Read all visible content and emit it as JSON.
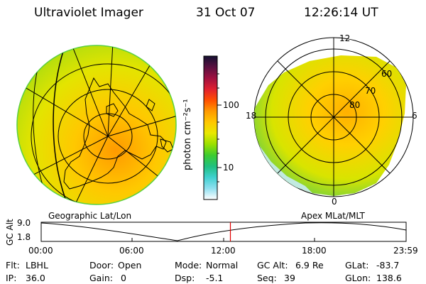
{
  "header": {
    "instrument": "Ultraviolet Imager",
    "date": "31 Oct 07",
    "time": "12:26:14 UT"
  },
  "left_panel": {
    "label": "Geographic Lat/Lon"
  },
  "right_panel": {
    "label": "Apex  MLat/MLT",
    "mlt_labels": {
      "top": "12",
      "left": "18",
      "right": "6",
      "bottom": "0"
    },
    "lat_labels": [
      "60",
      "70",
      "80"
    ]
  },
  "colorbar": {
    "unit_label": "photon cm⁻²s⁻¹",
    "tick_labels": [
      "100",
      "10"
    ],
    "colors": [
      "#141030",
      "#5a1040",
      "#a01040",
      "#e02030",
      "#ff5000",
      "#ff9a00",
      "#ffc800",
      "#e8e800",
      "#9ae000",
      "#3ccc30",
      "#20c080",
      "#40d0d0",
      "#90e0f0",
      "#ffffff"
    ]
  },
  "timeline": {
    "ylabel": "GC Alt",
    "y_ticks": [
      "9.0",
      "1.8"
    ],
    "x_ticks": [
      "00:00",
      "06:00",
      "12:00",
      "18:00",
      "23:59"
    ],
    "marker_time": "12:26"
  },
  "info": {
    "row1": [
      {
        "key": "Flt:",
        "value": "LBHL"
      },
      {
        "key": "Door:",
        "value": "Open"
      },
      {
        "key": "Mode:",
        "value": "Normal"
      },
      {
        "key": "GC Alt:",
        "value": "6.9 Re"
      },
      {
        "key": "GLat:",
        "value": "-83.7"
      }
    ],
    "row2": [
      {
        "key": "IP:",
        "value": "36.0"
      },
      {
        "key": "Gain:",
        "value": "0"
      },
      {
        "key": "Dsp:",
        "value": "-5.1"
      },
      {
        "key": "Seq:",
        "value": "39"
      },
      {
        "key": "GLon:",
        "value": "138.6"
      }
    ]
  }
}
